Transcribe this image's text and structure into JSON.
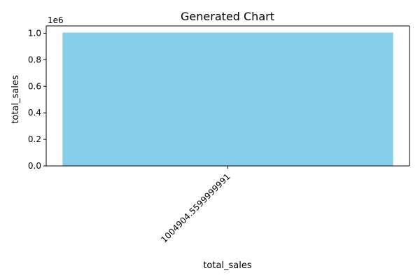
{
  "chart_data": {
    "type": "bar",
    "title": "Generated Chart",
    "xlabel": "total_sales",
    "ylabel": "total_sales",
    "y_offset_label": "1e6",
    "y_scale": 1000000,
    "categories": [
      "1004904.5599999991"
    ],
    "values": [
      1004904.56
    ],
    "ylim": [
      0,
      1055149.79
    ],
    "yticks": [
      0,
      0.2,
      0.4,
      0.6,
      0.8,
      1.0
    ],
    "ytick_labels": [
      "0.0",
      "0.2",
      "0.4",
      "0.6",
      "0.8",
      "1.0"
    ],
    "bar_color": "#87CEEB",
    "grid": false,
    "legend": "none"
  }
}
